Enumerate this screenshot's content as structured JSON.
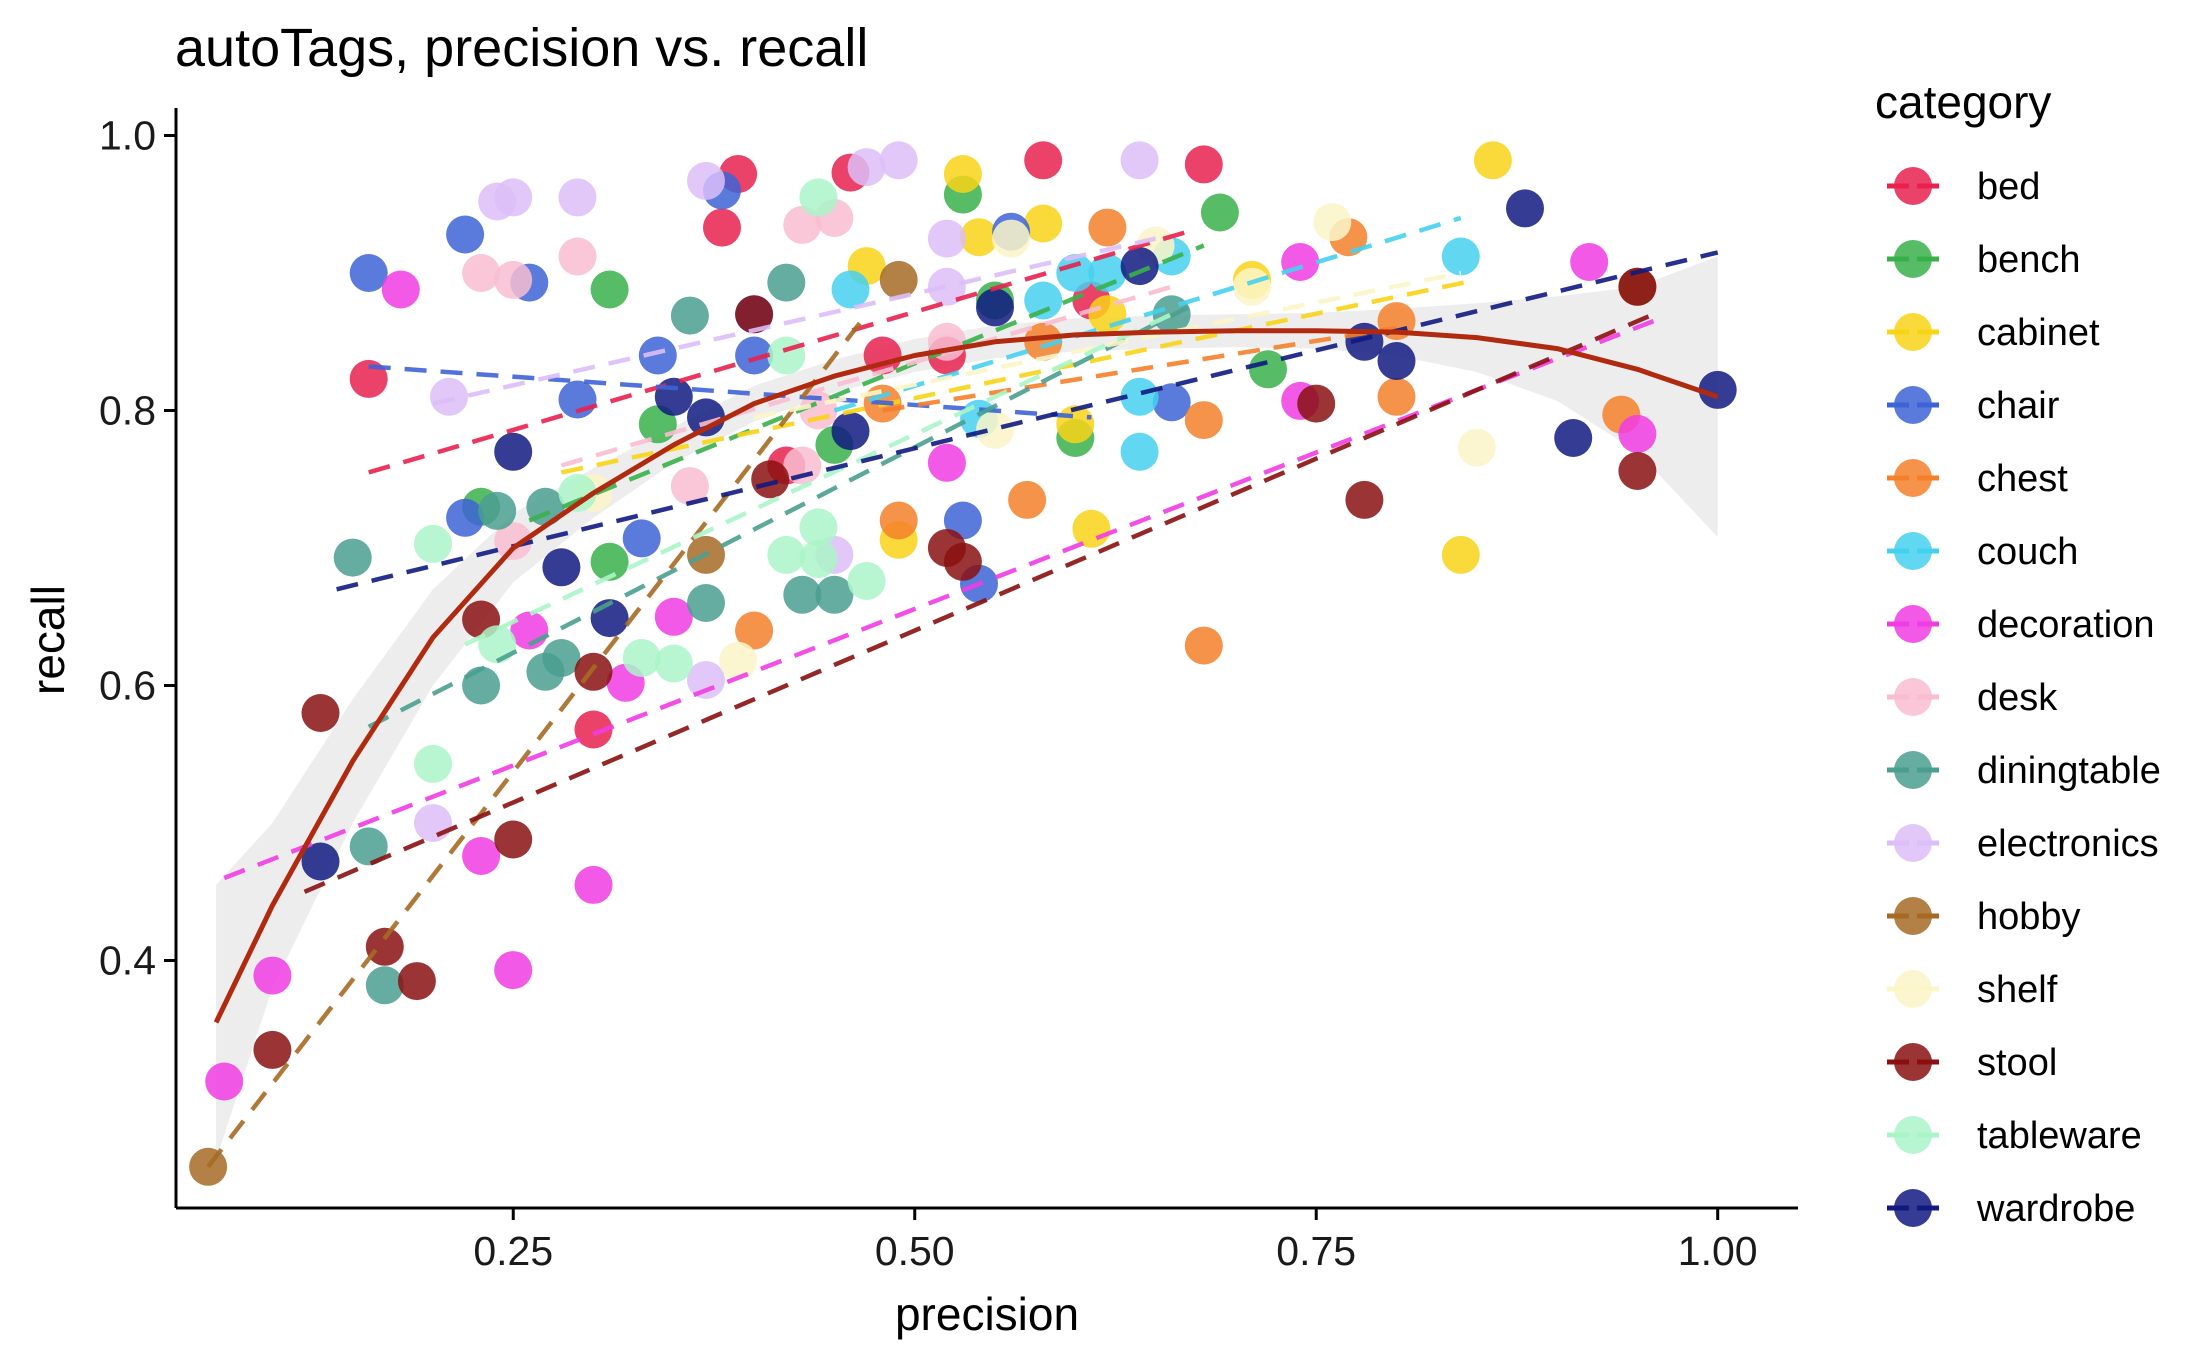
{
  "chart_data": {
    "type": "scatter",
    "title": "autoTags, precision vs. recall",
    "xlabel": "precision",
    "ylabel": "recall",
    "xlim": [
      0.04,
      1.05
    ],
    "ylim": [
      0.22,
      1.02
    ],
    "xticks": [
      "0.25",
      "0.50",
      "0.75",
      "1.00"
    ],
    "yticks": [
      "0.4",
      "0.6",
      "0.8",
      "1.0"
    ],
    "grid": false,
    "legend": {
      "title": "category",
      "position": "right"
    },
    "series": [
      {
        "name": "bed",
        "color": "#E8214F",
        "fit": [
          [
            0.16,
            0.755
          ],
          [
            0.67,
            0.93
          ]
        ],
        "points": [
          [
            0.16,
            0.823
          ],
          [
            0.39,
            0.972
          ],
          [
            0.38,
            0.933
          ],
          [
            0.46,
            0.973
          ],
          [
            0.58,
            0.982
          ],
          [
            0.68,
            0.979
          ],
          [
            0.3,
            0.568
          ],
          [
            0.42,
            0.76
          ],
          [
            0.52,
            0.84
          ],
          [
            0.61,
            0.88
          ],
          [
            0.48,
            0.84
          ]
        ]
      },
      {
        "name": "bench",
        "color": "#38B04A",
        "fit": [
          [
            0.26,
            0.72
          ],
          [
            0.68,
            0.92
          ]
        ],
        "points": [
          [
            0.31,
            0.888
          ],
          [
            0.53,
            0.957
          ],
          [
            0.69,
            0.944
          ],
          [
            0.34,
            0.79
          ],
          [
            0.31,
            0.69
          ],
          [
            0.6,
            0.78
          ],
          [
            0.55,
            0.88
          ],
          [
            0.72,
            0.83
          ],
          [
            0.45,
            0.775
          ],
          [
            0.23,
            0.73
          ]
        ]
      },
      {
        "name": "cabinet",
        "color": "#F8D417",
        "fit": [
          [
            0.28,
            0.755
          ],
          [
            0.85,
            0.895
          ]
        ],
        "points": [
          [
            0.53,
            0.972
          ],
          [
            0.86,
            0.982
          ],
          [
            0.47,
            0.905
          ],
          [
            0.54,
            0.926
          ],
          [
            0.58,
            0.936
          ],
          [
            0.84,
            0.695
          ],
          [
            0.61,
            0.714
          ],
          [
            0.6,
            0.79
          ],
          [
            0.49,
            0.706
          ],
          [
            0.71,
            0.895
          ],
          [
            0.62,
            0.87
          ]
        ]
      },
      {
        "name": "chair",
        "color": "#3D63D6",
        "fit": [
          [
            0.16,
            0.832
          ],
          [
            0.61,
            0.795
          ]
        ],
        "points": [
          [
            0.16,
            0.9
          ],
          [
            0.22,
            0.928
          ],
          [
            0.26,
            0.893
          ],
          [
            0.38,
            0.96
          ],
          [
            0.34,
            0.84
          ],
          [
            0.4,
            0.87
          ],
          [
            0.22,
            0.722
          ],
          [
            0.53,
            0.72
          ],
          [
            0.54,
            0.674
          ],
          [
            0.29,
            0.808
          ],
          [
            0.56,
            0.93
          ],
          [
            0.66,
            0.806
          ],
          [
            0.4,
            0.84
          ],
          [
            0.33,
            0.707
          ]
        ]
      },
      {
        "name": "chest",
        "color": "#F4802A",
        "fit": [
          [
            0.48,
            0.8
          ],
          [
            0.8,
            0.86
          ]
        ],
        "points": [
          [
            0.62,
            0.933
          ],
          [
            0.77,
            0.926
          ],
          [
            0.57,
            0.735
          ],
          [
            0.68,
            0.629
          ],
          [
            0.4,
            0.64
          ],
          [
            0.49,
            0.72
          ],
          [
            0.68,
            0.793
          ],
          [
            0.8,
            0.81
          ],
          [
            0.48,
            0.805
          ],
          [
            0.58,
            0.85
          ],
          [
            0.8,
            0.865
          ],
          [
            0.94,
            0.797
          ]
        ]
      },
      {
        "name": "couch",
        "color": "#45D0F0",
        "fit": [
          [
            0.45,
            0.8
          ],
          [
            0.84,
            0.94
          ]
        ],
        "points": [
          [
            0.46,
            0.888
          ],
          [
            0.66,
            0.912
          ],
          [
            0.84,
            0.912
          ],
          [
            0.6,
            0.9
          ],
          [
            0.54,
            0.794
          ],
          [
            0.64,
            0.77
          ],
          [
            0.64,
            0.81
          ],
          [
            0.58,
            0.88
          ],
          [
            0.62,
            0.9
          ]
        ]
      },
      {
        "name": "decoration",
        "color": "#F03CE3",
        "fit": [
          [
            0.07,
            0.46
          ],
          [
            0.96,
            0.865
          ]
        ],
        "points": [
          [
            0.07,
            0.312
          ],
          [
            0.1,
            0.389
          ],
          [
            0.18,
            0.888
          ],
          [
            0.23,
            0.476
          ],
          [
            0.25,
            0.393
          ],
          [
            0.3,
            0.455
          ],
          [
            0.32,
            0.602
          ],
          [
            0.35,
            0.65
          ],
          [
            0.52,
            0.762
          ],
          [
            0.74,
            0.908
          ],
          [
            0.74,
            0.807
          ],
          [
            0.92,
            0.908
          ],
          [
            0.95,
            0.783
          ],
          [
            0.26,
            0.64
          ]
        ]
      },
      {
        "name": "desk",
        "color": "#F8BDD0",
        "fit": [
          [
            0.28,
            0.76
          ],
          [
            0.66,
            0.89
          ]
        ],
        "points": [
          [
            0.23,
            0.9
          ],
          [
            0.25,
            0.895
          ],
          [
            0.29,
            0.912
          ],
          [
            0.43,
            0.935
          ],
          [
            0.45,
            0.94
          ],
          [
            0.43,
            0.76
          ],
          [
            0.44,
            0.8
          ],
          [
            0.36,
            0.745
          ],
          [
            0.25,
            0.705
          ],
          [
            0.52,
            0.85
          ]
        ]
      },
      {
        "name": "diningtable",
        "color": "#4A9E90",
        "fit": [
          [
            0.16,
            0.57
          ],
          [
            0.67,
            0.875
          ]
        ],
        "points": [
          [
            0.15,
            0.693
          ],
          [
            0.16,
            0.483
          ],
          [
            0.17,
            0.382
          ],
          [
            0.23,
            0.6
          ],
          [
            0.24,
            0.727
          ],
          [
            0.27,
            0.61
          ],
          [
            0.28,
            0.62
          ],
          [
            0.36,
            0.869
          ],
          [
            0.42,
            0.893
          ],
          [
            0.37,
            0.66
          ],
          [
            0.43,
            0.666
          ],
          [
            0.45,
            0.666
          ],
          [
            0.66,
            0.87
          ],
          [
            0.27,
            0.73
          ]
        ]
      },
      {
        "name": "electronics",
        "color": "#DCBEF8",
        "fit": [
          [
            0.2,
            0.805
          ],
          [
            0.65,
            0.925
          ]
        ],
        "points": [
          [
            0.24,
            0.952
          ],
          [
            0.25,
            0.955
          ],
          [
            0.29,
            0.955
          ],
          [
            0.37,
            0.967
          ],
          [
            0.47,
            0.977
          ],
          [
            0.49,
            0.982
          ],
          [
            0.64,
            0.982
          ],
          [
            0.52,
            0.925
          ],
          [
            0.52,
            0.89
          ],
          [
            0.21,
            0.81
          ],
          [
            0.37,
            0.604
          ],
          [
            0.45,
            0.695
          ],
          [
            0.2,
            0.5
          ]
        ]
      },
      {
        "name": "hobby",
        "color": "#A66A24",
        "fit": [
          [
            0.06,
            0.25
          ],
          [
            0.47,
            0.87
          ]
        ],
        "points": [
          [
            0.06,
            0.25
          ],
          [
            0.37,
            0.695
          ],
          [
            0.49,
            0.895
          ],
          [
            0.95,
            0.89
          ]
        ]
      },
      {
        "name": "shelf",
        "color": "#FCF5C8",
        "fit": [
          [
            0.4,
            0.795
          ],
          [
            0.84,
            0.9
          ]
        ],
        "points": [
          [
            0.76,
            0.937
          ],
          [
            0.56,
            0.925
          ],
          [
            0.65,
            0.92
          ],
          [
            0.55,
            0.786
          ],
          [
            0.85,
            0.773
          ],
          [
            0.39,
            0.618
          ],
          [
            0.3,
            0.74
          ],
          [
            0.71,
            0.89
          ]
        ]
      },
      {
        "name": "stool",
        "color": "#8A1010",
        "fit": [
          [
            0.12,
            0.45
          ],
          [
            0.96,
            0.87
          ]
        ],
        "points": [
          [
            0.1,
            0.335
          ],
          [
            0.13,
            0.58
          ],
          [
            0.17,
            0.41
          ],
          [
            0.19,
            0.385
          ],
          [
            0.23,
            0.648
          ],
          [
            0.25,
            0.488
          ],
          [
            0.3,
            0.61
          ],
          [
            0.4,
            0.87
          ],
          [
            0.41,
            0.75
          ],
          [
            0.52,
            0.7
          ],
          [
            0.53,
            0.69
          ],
          [
            0.75,
            0.805
          ],
          [
            0.78,
            0.735
          ],
          [
            0.95,
            0.756
          ],
          [
            0.95,
            0.89
          ]
        ]
      },
      {
        "name": "tableware",
        "color": "#AAF5C8",
        "fit": [
          [
            0.22,
            0.63
          ],
          [
            0.66,
            0.87
          ]
        ],
        "points": [
          [
            0.2,
            0.543
          ],
          [
            0.2,
            0.703
          ],
          [
            0.24,
            0.63
          ],
          [
            0.29,
            0.74
          ],
          [
            0.33,
            0.62
          ],
          [
            0.35,
            0.616
          ],
          [
            0.42,
            0.695
          ],
          [
            0.44,
            0.692
          ],
          [
            0.44,
            0.715
          ],
          [
            0.44,
            0.955
          ],
          [
            0.47,
            0.676
          ],
          [
            0.42,
            0.84
          ]
        ]
      },
      {
        "name": "wardrobe",
        "color": "#101A80",
        "fit": [
          [
            0.14,
            0.67
          ],
          [
            1.0,
            0.915
          ]
        ],
        "points": [
          [
            0.13,
            0.472
          ],
          [
            0.25,
            0.77
          ],
          [
            0.28,
            0.686
          ],
          [
            0.31,
            0.649
          ],
          [
            0.35,
            0.81
          ],
          [
            0.37,
            0.795
          ],
          [
            0.46,
            0.785
          ],
          [
            0.55,
            0.875
          ],
          [
            0.64,
            0.905
          ],
          [
            0.78,
            0.85
          ],
          [
            0.8,
            0.836
          ],
          [
            0.88,
            0.947
          ],
          [
            0.91,
            0.78
          ],
          [
            1.0,
            0.815
          ]
        ]
      }
    ],
    "smooth": {
      "name": "overall",
      "color": "#B02A10",
      "band": "#EBEBEB",
      "line": [
        [
          0.065,
          0.355
        ],
        [
          0.1,
          0.44
        ],
        [
          0.15,
          0.545
        ],
        [
          0.2,
          0.635
        ],
        [
          0.25,
          0.7
        ],
        [
          0.3,
          0.74
        ],
        [
          0.35,
          0.775
        ],
        [
          0.4,
          0.805
        ],
        [
          0.45,
          0.825
        ],
        [
          0.5,
          0.84
        ],
        [
          0.55,
          0.85
        ],
        [
          0.6,
          0.855
        ],
        [
          0.65,
          0.857
        ],
        [
          0.7,
          0.858
        ],
        [
          0.75,
          0.858
        ],
        [
          0.8,
          0.857
        ],
        [
          0.85,
          0.853
        ],
        [
          0.9,
          0.845
        ],
        [
          0.95,
          0.83
        ],
        [
          1.0,
          0.81
        ]
      ],
      "lower": [
        [
          0.065,
          0.255
        ],
        [
          0.1,
          0.38
        ],
        [
          0.15,
          0.5
        ],
        [
          0.2,
          0.6
        ],
        [
          0.25,
          0.675
        ],
        [
          0.3,
          0.722
        ],
        [
          0.35,
          0.762
        ],
        [
          0.4,
          0.792
        ],
        [
          0.45,
          0.813
        ],
        [
          0.5,
          0.828
        ],
        [
          0.55,
          0.838
        ],
        [
          0.6,
          0.843
        ],
        [
          0.65,
          0.845
        ],
        [
          0.7,
          0.846
        ],
        [
          0.75,
          0.845
        ],
        [
          0.8,
          0.84
        ],
        [
          0.85,
          0.828
        ],
        [
          0.9,
          0.807
        ],
        [
          0.95,
          0.77
        ],
        [
          1.0,
          0.708
        ]
      ],
      "upper": [
        [
          0.065,
          0.455
        ],
        [
          0.1,
          0.5
        ],
        [
          0.15,
          0.59
        ],
        [
          0.2,
          0.67
        ],
        [
          0.25,
          0.725
        ],
        [
          0.3,
          0.758
        ],
        [
          0.35,
          0.788
        ],
        [
          0.4,
          0.818
        ],
        [
          0.45,
          0.837
        ],
        [
          0.5,
          0.852
        ],
        [
          0.55,
          0.862
        ],
        [
          0.6,
          0.867
        ],
        [
          0.65,
          0.869
        ],
        [
          0.7,
          0.87
        ],
        [
          0.75,
          0.871
        ],
        [
          0.8,
          0.874
        ],
        [
          0.85,
          0.878
        ],
        [
          0.9,
          0.883
        ],
        [
          0.95,
          0.89
        ],
        [
          1.0,
          0.912
        ]
      ]
    }
  }
}
